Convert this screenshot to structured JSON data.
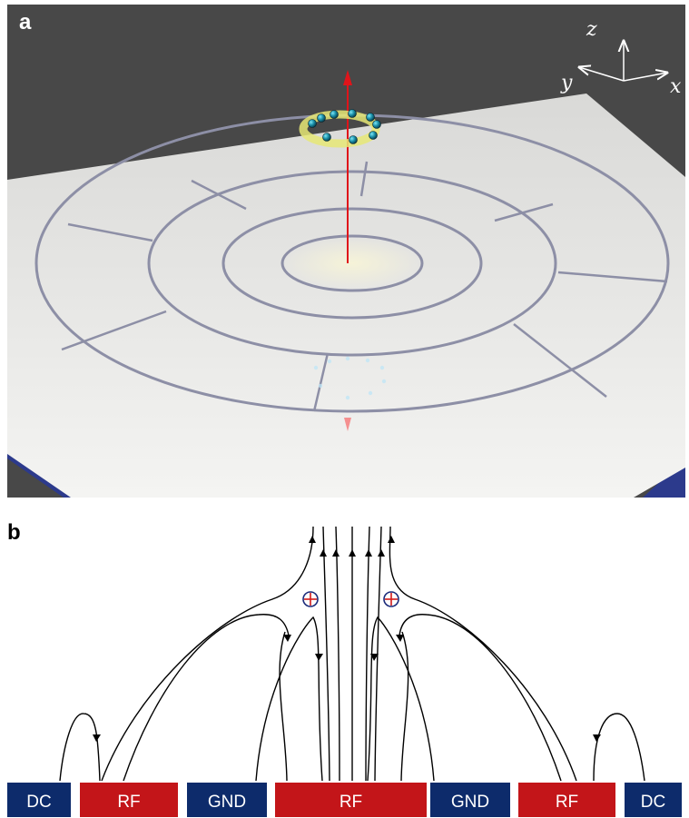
{
  "panel_a": {
    "label": "a",
    "axes": {
      "z": "z",
      "y": "y",
      "x": "x"
    },
    "colors": {
      "background": "#484848",
      "plate": "#e9e9e7",
      "groove": "#8d8fa6",
      "arrow": "#e0141a",
      "ion": "#1a8fa8",
      "ring": "#e6e876",
      "substrate": "#2c3a8c"
    }
  },
  "panel_b": {
    "label": "b",
    "ion_symbol": "⊕",
    "electrodes": [
      {
        "label": "DC",
        "color": "#0d2b6b"
      },
      {
        "label": "RF",
        "color": "#c31519"
      },
      {
        "label": "GND",
        "color": "#0d2b6b"
      },
      {
        "label": "RF",
        "color": "#c31519"
      },
      {
        "label": "GND",
        "color": "#0d2b6b"
      },
      {
        "label": "RF",
        "color": "#c31519"
      },
      {
        "label": "DC",
        "color": "#0d2b6b"
      }
    ]
  }
}
